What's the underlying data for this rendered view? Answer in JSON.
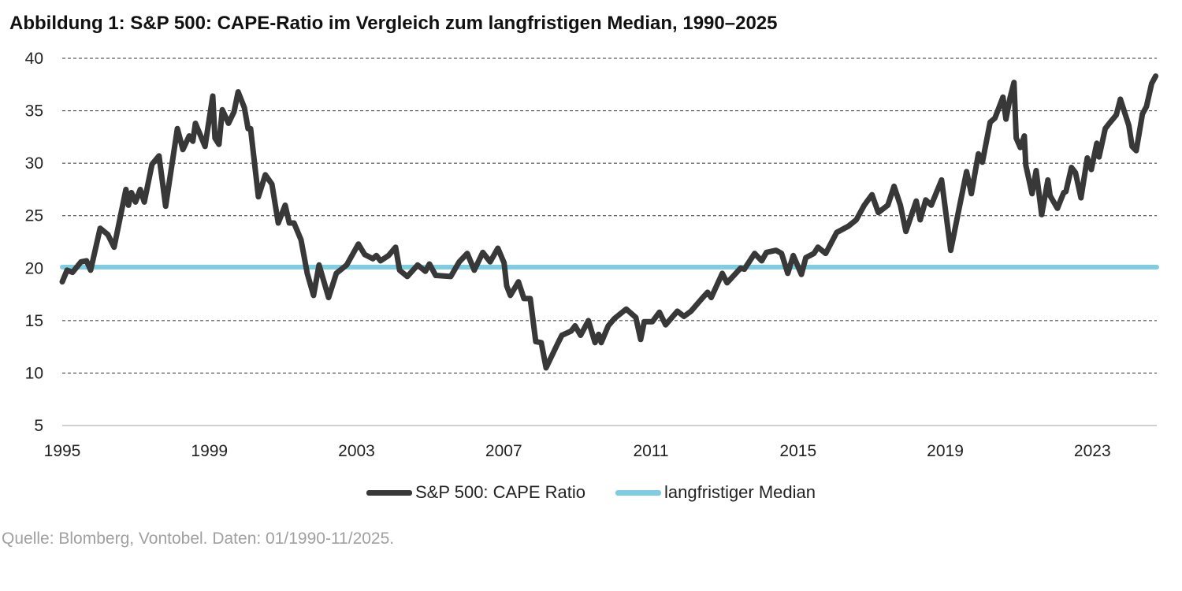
{
  "title": "Abbildung 1: S&P 500: CAPE-Ratio im Vergleich zum langfristigen Median, 1990–2025",
  "source": "Quelle: Blomberg, Vontobel. Daten: 01/1990-11/2025.",
  "colors": {
    "cape": "#383838",
    "median": "#7ecde0",
    "grid": "#333333",
    "axis": "#d0d0d0"
  },
  "chart_data": {
    "type": "line",
    "title": "Abbildung 1: S&P 500: CAPE-Ratio im Vergleich zum langfristigen Median, 1990–2025",
    "xlabel": "",
    "ylabel": "",
    "ylim": [
      5,
      40
    ],
    "xlim": [
      1995,
      2024.75
    ],
    "yticks": [
      "5",
      "10",
      "15",
      "20",
      "25",
      "30",
      "35",
      "40"
    ],
    "xticks": [
      "1995",
      "1999",
      "2003",
      "2007",
      "2011",
      "2015",
      "2019",
      "2023"
    ],
    "grid": "horizontal-dashed",
    "legend_position": "bottom-center",
    "series": [
      {
        "name": "S&P 500: CAPE Ratio",
        "color": "#383838",
        "x": [
          1995.0,
          1995.13,
          1995.28,
          1995.51,
          1995.66,
          1995.77,
          1996.03,
          1996.24,
          1996.41,
          1996.73,
          1996.8,
          1996.88,
          1996.99,
          1997.12,
          1997.23,
          1997.44,
          1997.63,
          1997.81,
          1998.13,
          1998.28,
          1998.45,
          1998.55,
          1998.62,
          1998.88,
          1999.09,
          1999.15,
          1999.26,
          1999.35,
          1999.52,
          1999.67,
          1999.78,
          1999.95,
          2000.05,
          2000.12,
          2000.33,
          2000.52,
          2000.7,
          2000.87,
          2001.06,
          2001.17,
          2001.3,
          2001.49,
          2001.66,
          2001.83,
          2001.98,
          2002.24,
          2002.45,
          2002.73,
          2003.05,
          2003.22,
          2003.44,
          2003.54,
          2003.65,
          2003.87,
          2004.06,
          2004.17,
          2004.38,
          2004.66,
          2004.87,
          2004.98,
          2005.15,
          2005.19,
          2005.56,
          2005.79,
          2006.01,
          2006.2,
          2006.43,
          2006.63,
          2006.84,
          2007.01,
          2007.08,
          2007.18,
          2007.4,
          2007.55,
          2007.72,
          2007.87,
          2008.02,
          2008.15,
          2008.45,
          2008.58,
          2008.83,
          2008.94,
          2009.09,
          2009.3,
          2009.48,
          2009.58,
          2009.65,
          2009.84,
          2010.01,
          2010.33,
          2010.59,
          2010.72,
          2010.82,
          2011.04,
          2011.23,
          2011.4,
          2011.72,
          2011.9,
          2012.09,
          2012.41,
          2012.54,
          2012.64,
          2012.94,
          2013.07,
          2013.44,
          2013.54,
          2013.82,
          2014.01,
          2014.14,
          2014.4,
          2014.55,
          2014.72,
          2014.87,
          2015.09,
          2015.21,
          2015.43,
          2015.54,
          2015.75,
          2016.05,
          2016.37,
          2016.58,
          2016.8,
          2017.01,
          2017.18,
          2017.44,
          2017.61,
          2017.78,
          2017.93,
          2018.21,
          2018.32,
          2018.47,
          2018.62,
          2018.9,
          2019.15,
          2019.39,
          2019.58,
          2019.71,
          2019.9,
          2020.01,
          2020.22,
          2020.35,
          2020.57,
          2020.65,
          2020.76,
          2020.87,
          2020.93,
          2021.04,
          2021.15,
          2021.19,
          2021.36,
          2021.47,
          2021.62,
          2021.79,
          2021.85,
          2022.05,
          2022.22,
          2022.28,
          2022.43,
          2022.54,
          2022.69,
          2022.86,
          2022.97,
          2023.12,
          2023.18,
          2023.35,
          2023.46,
          2023.65,
          2023.76,
          2023.99,
          2024.08,
          2024.19,
          2024.36,
          2024.47,
          2024.61,
          2024.72
        ],
        "y": [
          18.7,
          19.8,
          19.6,
          20.6,
          20.7,
          19.8,
          23.8,
          23.2,
          22.0,
          27.5,
          26.0,
          27.2,
          26.3,
          27.5,
          26.3,
          29.9,
          30.7,
          25.9,
          33.3,
          31.3,
          32.6,
          32.1,
          33.8,
          31.6,
          36.4,
          32.4,
          31.8,
          35.1,
          33.8,
          34.9,
          36.8,
          35.3,
          33.3,
          33.3,
          26.8,
          28.9,
          28.0,
          24.3,
          26.0,
          24.3,
          24.3,
          22.7,
          19.5,
          17.4,
          20.3,
          17.2,
          19.5,
          20.3,
          22.3,
          21.3,
          20.9,
          21.2,
          20.7,
          21.2,
          22.0,
          19.8,
          19.2,
          20.3,
          19.7,
          20.4,
          19.3,
          19.3,
          19.2,
          20.6,
          21.4,
          19.8,
          21.5,
          20.6,
          21.9,
          20.5,
          18.3,
          17.4,
          18.7,
          17.1,
          17.1,
          13.0,
          12.9,
          10.5,
          12.7,
          13.6,
          14.0,
          14.5,
          13.6,
          15.0,
          12.9,
          13.7,
          12.9,
          14.5,
          15.2,
          16.1,
          15.3,
          13.2,
          14.9,
          14.9,
          15.8,
          14.6,
          15.9,
          15.4,
          15.9,
          17.2,
          17.7,
          17.2,
          19.5,
          18.6,
          20.0,
          19.9,
          21.4,
          20.7,
          21.5,
          21.7,
          21.4,
          19.5,
          21.2,
          19.4,
          21.0,
          21.4,
          22.0,
          21.4,
          23.4,
          24.0,
          24.6,
          26.0,
          27.0,
          25.3,
          26.0,
          27.8,
          26.0,
          23.5,
          26.4,
          24.6,
          26.5,
          26.0,
          28.4,
          21.7,
          25.9,
          29.2,
          27.1,
          30.9,
          30.1,
          33.9,
          34.3,
          36.3,
          34.2,
          36.2,
          37.7,
          32.4,
          31.5,
          32.6,
          29.8,
          27.1,
          29.3,
          25.1,
          28.4,
          26.9,
          25.7,
          27.2,
          27.3,
          29.6,
          29.1,
          26.7,
          30.5,
          29.4,
          31.9,
          30.6,
          33.3,
          33.8,
          34.6,
          36.1,
          33.6,
          31.6,
          31.2,
          34.7,
          35.4,
          37.6,
          38.3
        ]
      },
      {
        "name": "langfristiger Median",
        "color": "#7ecde0",
        "x": [
          1995,
          2024.75
        ],
        "y": [
          20.1,
          20.1
        ]
      }
    ]
  }
}
